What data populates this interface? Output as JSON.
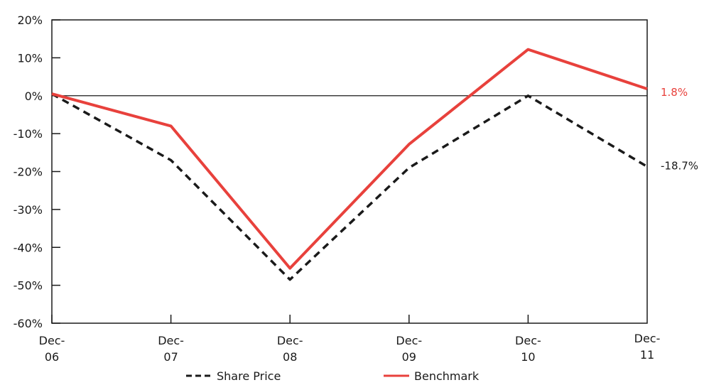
{
  "chart_data": {
    "type": "line",
    "x": [
      [
        "Dec-",
        "06"
      ],
      [
        "Dec-",
        "07"
      ],
      [
        "Dec-",
        "08"
      ],
      [
        "Dec-",
        "09"
      ],
      [
        "Dec-",
        "10"
      ],
      [
        "Dec-",
        "11"
      ]
    ],
    "ylim": [
      -60,
      20
    ],
    "yticks": [
      "20%",
      "10%",
      "0%",
      "-10%",
      "-20%",
      "-30%",
      "-40%",
      "-50%",
      "-60%"
    ],
    "grid": false,
    "legend_position": "bottom",
    "series": [
      {
        "name": "Share Price",
        "values": [
          0.5,
          -17,
          -48.5,
          -19,
          0,
          -18.7
        ],
        "color": "#1a1a1a",
        "style": "dashed",
        "end_label": "-18.7%",
        "end_label_color": "#1a1a1a"
      },
      {
        "name": "Benchmark",
        "values": [
          0.5,
          -8,
          -45.5,
          -12.8,
          12.2,
          1.8
        ],
        "color": "#e8413c",
        "style": "solid",
        "end_label": "1.8%",
        "end_label_color": "#e8413c"
      }
    ]
  }
}
